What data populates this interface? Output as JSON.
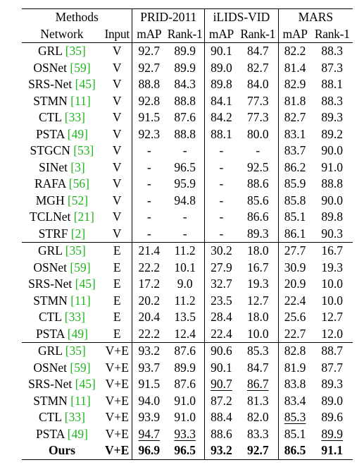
{
  "header": {
    "methods": "Methods",
    "datasets": [
      "PRID-2011",
      "iLIDS-VID",
      "MARS"
    ],
    "network": "Network",
    "input": "Input",
    "metrics": [
      "mAP",
      "Rank-1",
      "mAP",
      "Rank-1",
      "mAP",
      "Rank-1"
    ]
  },
  "groups": [
    {
      "rows": [
        {
          "name": "GRL",
          "cite": "[35]",
          "input": "V",
          "values": [
            "92.7",
            "89.9",
            "90.1",
            "84.7",
            "82.2",
            "88.3"
          ]
        },
        {
          "name": "OSNet",
          "cite": "[59]",
          "input": "V",
          "values": [
            "92.7",
            "89.9",
            "89.0",
            "82.7",
            "81.4",
            "87.3"
          ]
        },
        {
          "name": "SRS-Net",
          "cite": "[45]",
          "input": "V",
          "values": [
            "88.8",
            "84.3",
            "89.8",
            "84.0",
            "82.9",
            "88.1"
          ]
        },
        {
          "name": "STMN",
          "cite": "[11]",
          "input": "V",
          "values": [
            "92.8",
            "88.8",
            "84.1",
            "77.3",
            "81.8",
            "88.3"
          ]
        },
        {
          "name": "CTL",
          "cite": "[33]",
          "input": "V",
          "values": [
            "91.5",
            "87.6",
            "84.2",
            "77.3",
            "82.7",
            "89.3"
          ]
        },
        {
          "name": "PSTA",
          "cite": "[49]",
          "input": "V",
          "values": [
            "92.3",
            "88.8",
            "88.1",
            "80.0",
            "83.1",
            "89.2"
          ]
        },
        {
          "name": "STGCN",
          "cite": "[53]",
          "input": "V",
          "values": [
            "-",
            "-",
            "-",
            "-",
            "83.7",
            "90.0"
          ]
        },
        {
          "name": "SINet",
          "cite": "[3]",
          "input": "V",
          "values": [
            "-",
            "96.5",
            "-",
            "92.5",
            "86.2",
            "91.0"
          ]
        },
        {
          "name": "RAFA",
          "cite": "[56]",
          "input": "V",
          "values": [
            "-",
            "95.9",
            "-",
            "88.6",
            "85.9",
            "88.8"
          ]
        },
        {
          "name": "MGH",
          "cite": "[52]",
          "input": "V",
          "values": [
            "-",
            "94.8",
            "-",
            "85.6",
            "85.8",
            "90.0"
          ]
        },
        {
          "name": "TCLNet",
          "cite": "[21]",
          "input": "V",
          "values": [
            "-",
            "-",
            "-",
            "86.6",
            "85.1",
            "89.8"
          ]
        },
        {
          "name": "STRF",
          "cite": "[2]",
          "input": "V",
          "values": [
            "-",
            "-",
            "-",
            "89.3",
            "86.1",
            "90.3"
          ]
        }
      ]
    },
    {
      "rows": [
        {
          "name": "GRL",
          "cite": "[35]",
          "input": "E",
          "values": [
            "21.4",
            "11.2",
            "30.2",
            "18.0",
            "27.7",
            "16.7"
          ]
        },
        {
          "name": "OSNet",
          "cite": "[59]",
          "input": "E",
          "values": [
            "22.2",
            "10.1",
            "27.9",
            "16.7",
            "30.9",
            "19.3"
          ]
        },
        {
          "name": "SRS-Net",
          "cite": "[45]",
          "input": "E",
          "values": [
            "17.2",
            "9.0",
            "32.7",
            "19.3",
            "20.9",
            "10.0"
          ]
        },
        {
          "name": "STMN",
          "cite": "[11]",
          "input": "E",
          "values": [
            "20.2",
            "11.2",
            "23.5",
            "12.7",
            "22.4",
            "10.0"
          ]
        },
        {
          "name": "CTL",
          "cite": "[33]",
          "input": "E",
          "values": [
            "20.4",
            "13.5",
            "28.4",
            "18.0",
            "25.6",
            "12.7"
          ]
        },
        {
          "name": "PSTA",
          "cite": "[49]",
          "input": "E",
          "values": [
            "22.2",
            "12.4",
            "22.4",
            "10.0",
            "22.7",
            "12.0"
          ]
        }
      ]
    },
    {
      "rows": [
        {
          "name": "GRL",
          "cite": "[35]",
          "input": "V+E",
          "values": [
            "93.2",
            "87.6",
            "90.6",
            "85.3",
            "82.8",
            "88.7"
          ]
        },
        {
          "name": "OSNet",
          "cite": "[59]",
          "input": "V+E",
          "values": [
            "93.7",
            "89.9",
            "90.1",
            "84.7",
            "81.9",
            "87.7"
          ]
        },
        {
          "name": "SRS-Net",
          "cite": "[45]",
          "input": "V+E",
          "values": [
            "91.5",
            "87.6",
            "90.7",
            "86.7",
            "83.8",
            "89.3"
          ]
        },
        {
          "name": "STMN",
          "cite": "[11]",
          "input": "V+E",
          "values": [
            "94.0",
            "91.0",
            "87.2",
            "81.3",
            "83.4",
            "89.0"
          ]
        },
        {
          "name": "CTL",
          "cite": "[33]",
          "input": "V+E",
          "values": [
            "93.9",
            "91.0",
            "88.4",
            "82.0",
            "85.3",
            "89.6"
          ]
        },
        {
          "name": "PSTA",
          "cite": "[49]",
          "input": "V+E",
          "values": [
            "94.7",
            "93.3",
            "88.6",
            "83.3",
            "85.1",
            "89.9"
          ]
        },
        {
          "name": "Ours",
          "cite": "",
          "input": "V+E",
          "values": [
            "96.9",
            "96.5",
            "93.2",
            "92.7",
            "86.5",
            "91.1"
          ]
        }
      ]
    }
  ],
  "colors": {
    "citation": "#1fb51f",
    "text": "#000000"
  }
}
